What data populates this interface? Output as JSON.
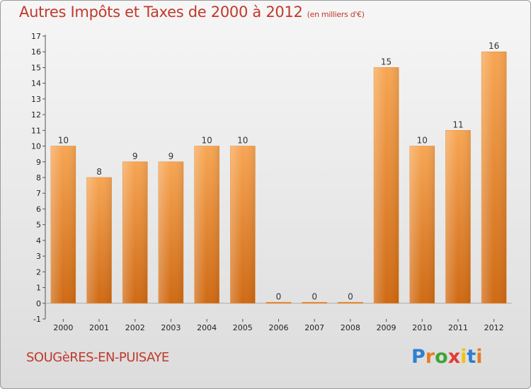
{
  "title": "Autres Impôts et Taxes de 2000 à 2012",
  "unit": "(en milliers d'€)",
  "commune": "SOUGèRES-EN-PUISAYE",
  "brand": {
    "letters": [
      "P",
      "r",
      "o",
      "x",
      "i",
      "t",
      "i"
    ],
    "colors": [
      "#2e7fd0",
      "#e67e22",
      "#3fa535",
      "#e53935",
      "#f1c40f",
      "#2e7fd0",
      "#e67e22"
    ]
  },
  "colors": {
    "bar": "#f08f2d",
    "bar_light": "#f7ad5e",
    "bar_dark": "#d9701a",
    "title": "#c0392b"
  },
  "chart_data": {
    "type": "bar",
    "categories": [
      "2000",
      "2001",
      "2002",
      "2003",
      "2004",
      "2005",
      "2006",
      "2007",
      "2008",
      "2009",
      "2010",
      "2011",
      "2012"
    ],
    "values": [
      10,
      8,
      9,
      9,
      10,
      10,
      0,
      0,
      0,
      15,
      10,
      11,
      16
    ],
    "value_labels": [
      "10",
      "8",
      "9",
      "9",
      "10",
      "10",
      "0",
      "0",
      "0",
      "15",
      "10",
      "11",
      "16"
    ],
    "title": "Autres Impôts et Taxes de 2000 à 2012",
    "xlabel": "",
    "ylabel": "",
    "ylim": [
      -1,
      17
    ],
    "yticks": [
      "-1",
      "0",
      "1",
      "2",
      "3",
      "4",
      "5",
      "6",
      "7",
      "8",
      "9",
      "10",
      "11",
      "12",
      "13",
      "14",
      "15",
      "16",
      "17"
    ],
    "grid": false,
    "legend": "none"
  }
}
